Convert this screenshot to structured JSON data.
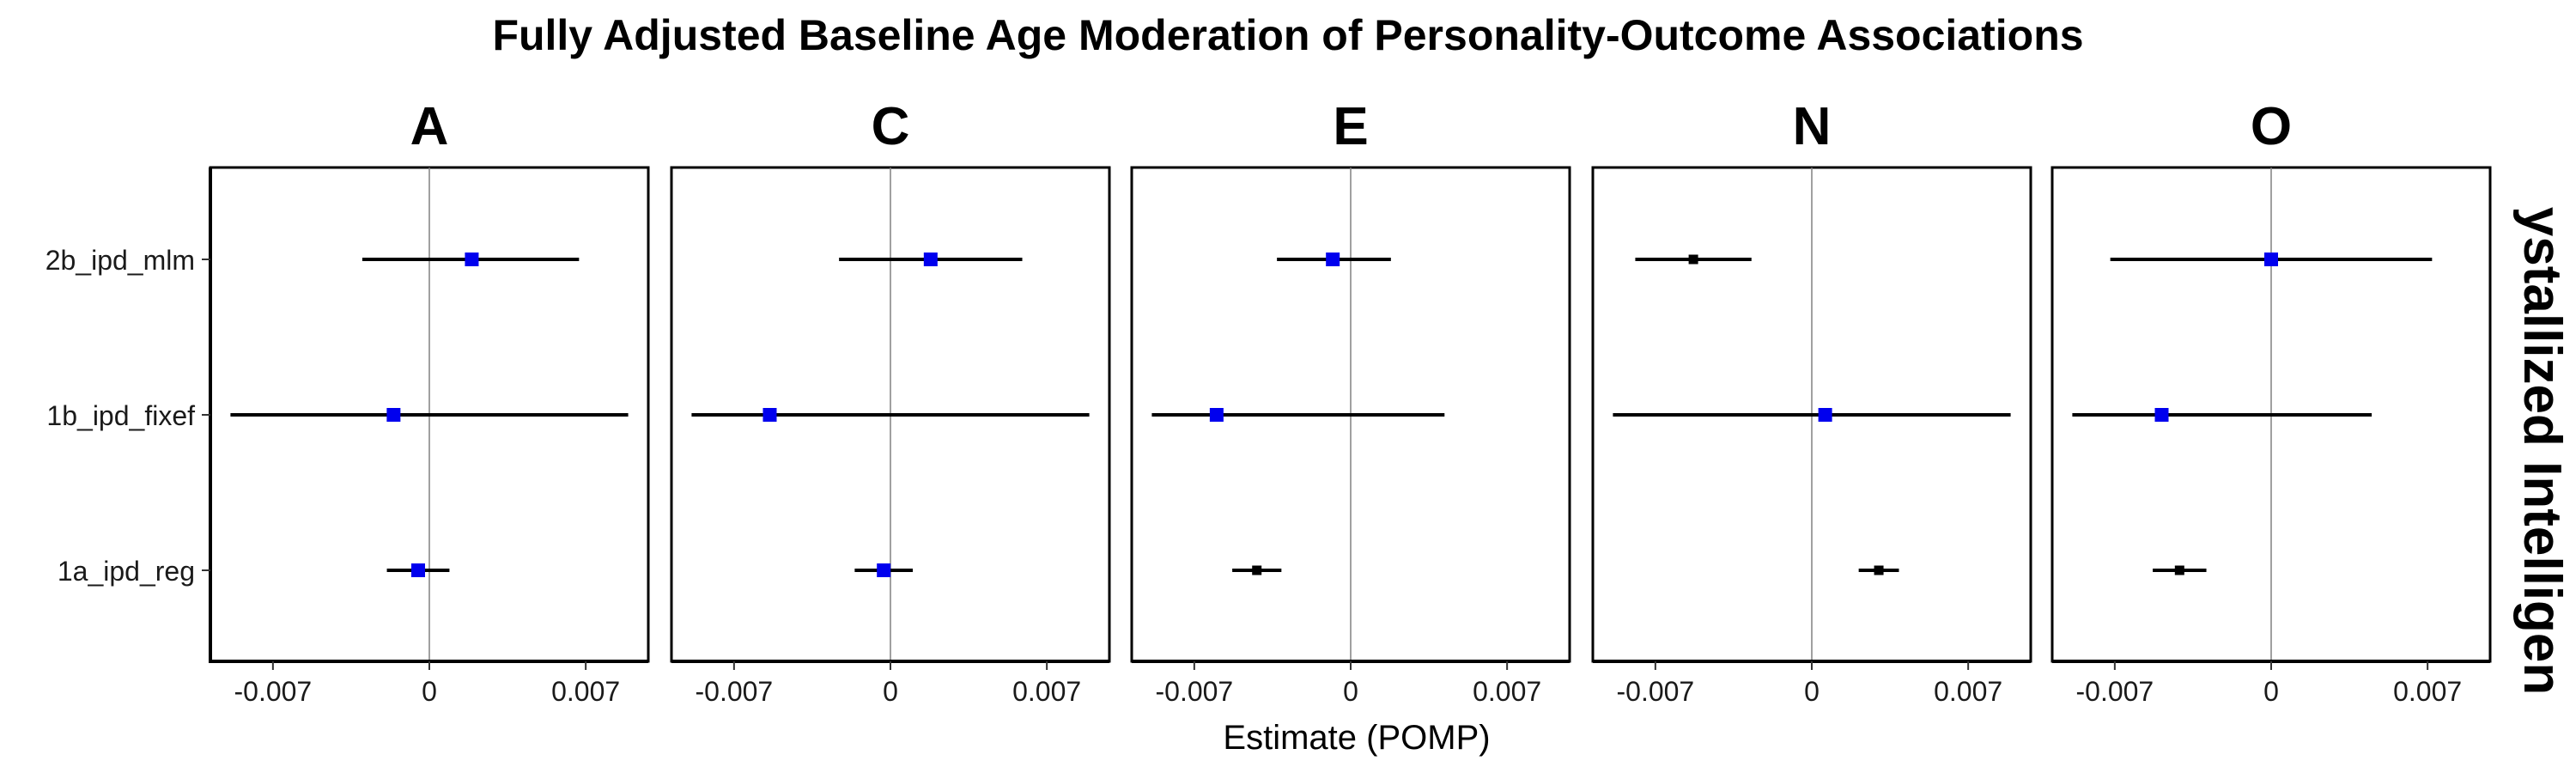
{
  "chart_data": {
    "type": "forest",
    "title": "Fully Adjusted Baseline Age Moderation of Personality-Outcome Associations",
    "xlabel": "Estimate (POMP)",
    "strip_right_label": "ystallized Intelligen",
    "categories": [
      "2b_ipd_mlm",
      "1b_ipd_fixef",
      "1a_ipd_reg"
    ],
    "x_ticks": [
      -0.007,
      0,
      0.007
    ],
    "x_tick_labels": [
      "-0.007",
      "0",
      "0.007"
    ],
    "xlim": [
      -0.0098,
      0.0098
    ],
    "reference_line": 0,
    "colors": {
      "significant": "#0000ee",
      "nonsignificant": "#000000",
      "ci_line": "#000000",
      "zero_line": "#808080",
      "panel_border": "#000000"
    },
    "panels": [
      {
        "name": "A",
        "rows": [
          {
            "model": "2b_ipd_mlm",
            "estimate": 0.0019,
            "ci_low": -0.003,
            "ci_high": 0.0067,
            "color": "#0000ee"
          },
          {
            "model": "1b_ipd_fixef",
            "estimate": -0.0016,
            "ci_low": -0.0089,
            "ci_high": 0.0089,
            "color": "#0000ee"
          },
          {
            "model": "1a_ipd_reg",
            "estimate": -0.0005,
            "ci_low": -0.0019,
            "ci_high": 0.0009,
            "color": "#0000ee"
          }
        ]
      },
      {
        "name": "C",
        "rows": [
          {
            "model": "2b_ipd_mlm",
            "estimate": 0.0018,
            "ci_low": -0.0023,
            "ci_high": 0.0059,
            "color": "#0000ee"
          },
          {
            "model": "1b_ipd_fixef",
            "estimate": -0.0054,
            "ci_low": -0.0089,
            "ci_high": 0.0089,
            "color": "#0000ee"
          },
          {
            "model": "1a_ipd_reg",
            "estimate": -0.0003,
            "ci_low": -0.0016,
            "ci_high": 0.001,
            "color": "#0000ee"
          }
        ]
      },
      {
        "name": "E",
        "rows": [
          {
            "model": "2b_ipd_mlm",
            "estimate": -0.0008,
            "ci_low": -0.0033,
            "ci_high": 0.0018,
            "color": "#0000ee"
          },
          {
            "model": "1b_ipd_fixef",
            "estimate": -0.006,
            "ci_low": -0.0089,
            "ci_high": 0.0042,
            "color": "#0000ee"
          },
          {
            "model": "1a_ipd_reg",
            "estimate": -0.0042,
            "ci_low": -0.0053,
            "ci_high": -0.0031,
            "color": "#000000"
          }
        ]
      },
      {
        "name": "N",
        "rows": [
          {
            "model": "2b_ipd_mlm",
            "estimate": -0.0053,
            "ci_low": -0.0079,
            "ci_high": -0.0027,
            "color": "#000000"
          },
          {
            "model": "1b_ipd_fixef",
            "estimate": 0.0006,
            "ci_low": -0.0089,
            "ci_high": 0.0089,
            "color": "#0000ee"
          },
          {
            "model": "1a_ipd_reg",
            "estimate": 0.003,
            "ci_low": 0.0021,
            "ci_high": 0.0039,
            "color": "#000000"
          }
        ]
      },
      {
        "name": "O",
        "rows": [
          {
            "model": "2b_ipd_mlm",
            "estimate": 0.0,
            "ci_low": -0.0072,
            "ci_high": 0.0072,
            "color": "#0000ee"
          },
          {
            "model": "1b_ipd_fixef",
            "estimate": -0.0049,
            "ci_low": -0.0089,
            "ci_high": 0.0045,
            "color": "#0000ee"
          },
          {
            "model": "1a_ipd_reg",
            "estimate": -0.0041,
            "ci_low": -0.0053,
            "ci_high": -0.0029,
            "color": "#000000"
          }
        ]
      }
    ]
  }
}
